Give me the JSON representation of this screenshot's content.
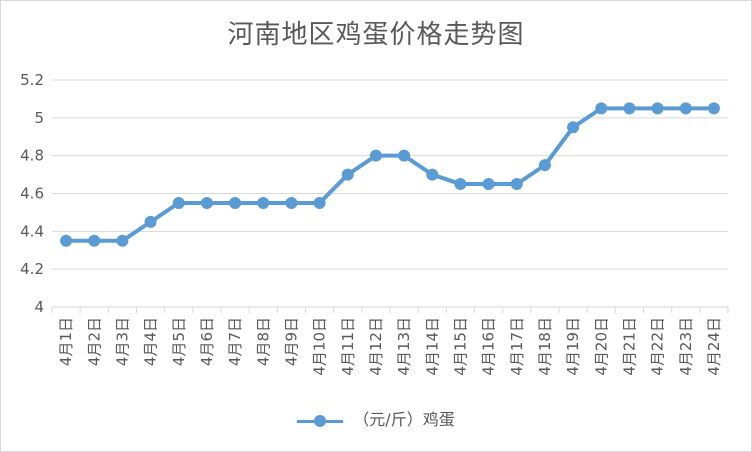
{
  "chart_data": {
    "type": "line",
    "title": "河南地区鸡蛋价格走势图",
    "categories": [
      "4月1日",
      "4月2日",
      "4月3日",
      "4月4日",
      "4月5日",
      "4月6日",
      "4月7日",
      "4月8日",
      "4月9日",
      "4月10日",
      "4月11日",
      "4月12日",
      "4月13日",
      "4月14日",
      "4月15日",
      "4月16日",
      "4月17日",
      "4月18日",
      "4月19日",
      "4月20日",
      "4月21日",
      "4月22日",
      "4月23日",
      "4月24日"
    ],
    "series": [
      {
        "name": "（元/斤）鸡蛋",
        "values": [
          4.35,
          4.35,
          4.35,
          4.45,
          4.55,
          4.55,
          4.55,
          4.55,
          4.55,
          4.55,
          4.7,
          4.8,
          4.8,
          4.7,
          4.65,
          4.65,
          4.65,
          4.75,
          4.95,
          5.05,
          5.05,
          5.05,
          5.05,
          5.05
        ]
      }
    ],
    "ylim": [
      4,
      5.2
    ],
    "yticks": [
      "4",
      "4.2",
      "4.4",
      "4.6",
      "4.8",
      "5",
      "5.2"
    ],
    "grid": true,
    "legend_position": "bottom",
    "colors": {
      "series": "#5b9bd5",
      "grid": "#d9d9d9",
      "text": "#595959"
    }
  }
}
